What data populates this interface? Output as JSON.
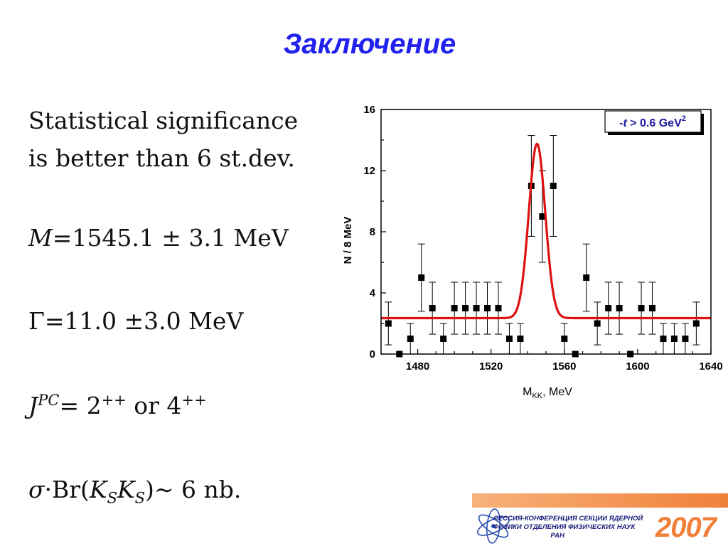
{
  "slide": {
    "title": "Заключение"
  },
  "statements": {
    "significance": {
      "line1": "Statistical significance",
      "line2": "is better than 6 st.dev."
    },
    "mass": {
      "symbol": "M",
      "text": "=1545.1 ± 3.1 MeV"
    },
    "width": {
      "text": "Γ=11.0 ±3.0 MeV"
    },
    "jpc": {
      "symbol": "J",
      "superscript": "PC",
      "eq": "= 2",
      "sup1": "++",
      "or": " or 4",
      "sup2": "++"
    },
    "cross_section": {
      "sigma": "σ",
      "br": "·Br(",
      "k1": "K",
      "s1": "S",
      "k2": "K",
      "s2": "S",
      "rest": ")∼ 6 nb."
    }
  },
  "chart_data": {
    "type": "scatter",
    "xlabel_main": "M",
    "xlabel_sub": "KK",
    "xlabel_rest": ", MeV",
    "ylabel": "N / 8 MeV",
    "xlim": [
      1460,
      1640
    ],
    "ylim": [
      0,
      16
    ],
    "xticks": [
      "1480",
      "1520",
      "1560",
      "1600",
      "1640"
    ],
    "yticks": [
      "0",
      "4",
      "8",
      "12",
      "16"
    ],
    "legend": {
      "prefix": "-",
      "t": "t",
      "rest": " > 0.6 GeV",
      "sup": "2"
    },
    "points": [
      {
        "x": 1464,
        "y": 2,
        "err": 1.4
      },
      {
        "x": 1470,
        "y": 0,
        "err": 0
      },
      {
        "x": 1476,
        "y": 1,
        "err": 1
      },
      {
        "x": 1482,
        "y": 5,
        "err": 2.2
      },
      {
        "x": 1488,
        "y": 3,
        "err": 1.7
      },
      {
        "x": 1494,
        "y": 1,
        "err": 1
      },
      {
        "x": 1500,
        "y": 3,
        "err": 1.7
      },
      {
        "x": 1506,
        "y": 3,
        "err": 1.7
      },
      {
        "x": 1512,
        "y": 3,
        "err": 1.7
      },
      {
        "x": 1518,
        "y": 3,
        "err": 1.7
      },
      {
        "x": 1524,
        "y": 3,
        "err": 1.7
      },
      {
        "x": 1530,
        "y": 1,
        "err": 1
      },
      {
        "x": 1536,
        "y": 1,
        "err": 1
      },
      {
        "x": 1542,
        "y": 11,
        "err": 3.3
      },
      {
        "x": 1548,
        "y": 9,
        "err": 3
      },
      {
        "x": 1554,
        "y": 11,
        "err": 3.3
      },
      {
        "x": 1560,
        "y": 1,
        "err": 1
      },
      {
        "x": 1566,
        "y": 0,
        "err": 0
      },
      {
        "x": 1572,
        "y": 5,
        "err": 2.2
      },
      {
        "x": 1578,
        "y": 2,
        "err": 1.4
      },
      {
        "x": 1584,
        "y": 3,
        "err": 1.7
      },
      {
        "x": 1590,
        "y": 3,
        "err": 1.7
      },
      {
        "x": 1596,
        "y": 0,
        "err": 0
      },
      {
        "x": 1602,
        "y": 3,
        "err": 1.7
      },
      {
        "x": 1608,
        "y": 3,
        "err": 1.7
      },
      {
        "x": 1614,
        "y": 1,
        "err": 1
      },
      {
        "x": 1620,
        "y": 1,
        "err": 1
      },
      {
        "x": 1626,
        "y": 1,
        "err": 1
      },
      {
        "x": 1632,
        "y": 2,
        "err": 1.4
      }
    ],
    "fit": {
      "background": 2.35,
      "amplitude": 11.4,
      "mean": 1545.1,
      "sigma": 4.5,
      "color": "#dd1111"
    }
  },
  "logo": {
    "line1": "СЕССИЯ-КОНФЕРЕНЦИЯ СЕКЦИИ ЯДЕРНОЙ",
    "line2": "ФИЗИКИ ОТДЕЛЕНИЯ ФИЗИЧЕСКИХ НАУК",
    "line3": "РАН",
    "year": "2007",
    "accent": "#f0803a"
  }
}
